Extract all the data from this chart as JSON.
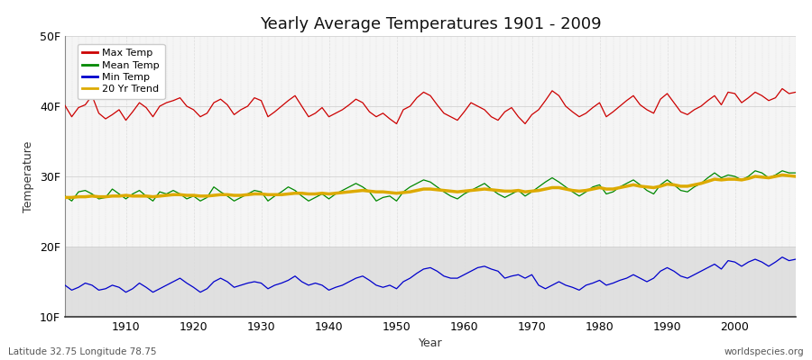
{
  "title": "Yearly Average Temperatures 1901 - 2009",
  "xlabel": "Year",
  "ylabel": "Temperature",
  "footnote_left": "Latitude 32.75 Longitude 78.75",
  "footnote_right": "worldspecies.org",
  "ylim": [
    10,
    50
  ],
  "xlim": [
    1901,
    2009
  ],
  "yticks": [
    10,
    20,
    30,
    40,
    50
  ],
  "ytick_labels": [
    "10F",
    "20F",
    "30F",
    "40F",
    "50F"
  ],
  "xticks": [
    1910,
    1920,
    1930,
    1940,
    1950,
    1960,
    1970,
    1980,
    1990,
    2000
  ],
  "legend_items": [
    {
      "label": "Max Temp",
      "color": "#cc0000"
    },
    {
      "label": "Mean Temp",
      "color": "#008800"
    },
    {
      "label": "Min Temp",
      "color": "#0000cc"
    },
    {
      "label": "20 Yr Trend",
      "color": "#ddaa00"
    }
  ],
  "bg_color": "#ffffff",
  "plot_bg_color": "#f5f5f5",
  "band_color": "#e0e0e0",
  "grid_color": "#cccccc",
  "grid_color_minor": "#dddddd",
  "max_temp": [
    40.1,
    38.5,
    39.8,
    40.2,
    41.5,
    39.0,
    38.2,
    38.8,
    39.5,
    38.0,
    39.2,
    40.5,
    39.8,
    38.5,
    40.0,
    40.5,
    40.8,
    41.2,
    40.0,
    39.5,
    38.5,
    39.0,
    40.5,
    41.0,
    40.2,
    38.8,
    39.5,
    40.0,
    41.2,
    40.8,
    38.5,
    39.2,
    40.0,
    40.8,
    41.5,
    40.0,
    38.5,
    39.0,
    39.8,
    38.5,
    39.0,
    39.5,
    40.2,
    41.0,
    40.5,
    39.2,
    38.5,
    39.0,
    38.2,
    37.5,
    39.5,
    40.0,
    41.2,
    42.0,
    41.5,
    40.2,
    39.0,
    38.5,
    38.0,
    39.2,
    40.5,
    40.0,
    39.5,
    38.5,
    38.0,
    39.2,
    39.8,
    38.5,
    37.5,
    38.8,
    39.5,
    40.8,
    42.2,
    41.5,
    40.0,
    39.2,
    38.5,
    39.0,
    39.8,
    40.5,
    38.5,
    39.2,
    40.0,
    40.8,
    41.5,
    40.2,
    39.5,
    39.0,
    41.0,
    41.8,
    40.5,
    39.2,
    38.8,
    39.5,
    40.0,
    40.8,
    41.5,
    40.2,
    42.0,
    41.8,
    40.5,
    41.2,
    42.0,
    41.5,
    40.8,
    41.2,
    42.5,
    41.8,
    42.0
  ],
  "mean_temp": [
    27.2,
    26.5,
    27.8,
    28.0,
    27.5,
    26.8,
    27.0,
    28.2,
    27.5,
    26.8,
    27.5,
    28.0,
    27.2,
    26.5,
    27.8,
    27.5,
    28.0,
    27.5,
    26.8,
    27.2,
    26.5,
    27.0,
    28.5,
    27.8,
    27.2,
    26.5,
    27.0,
    27.5,
    28.0,
    27.8,
    26.5,
    27.2,
    27.8,
    28.5,
    28.0,
    27.2,
    26.5,
    27.0,
    27.5,
    26.8,
    27.5,
    28.0,
    28.5,
    29.0,
    28.5,
    27.8,
    26.5,
    27.0,
    27.2,
    26.5,
    27.8,
    28.5,
    29.0,
    29.5,
    29.2,
    28.5,
    27.8,
    27.2,
    26.8,
    27.5,
    28.0,
    28.5,
    29.0,
    28.2,
    27.5,
    27.0,
    27.5,
    28.0,
    27.2,
    27.8,
    28.5,
    29.2,
    29.8,
    29.2,
    28.5,
    27.8,
    27.2,
    27.8,
    28.5,
    28.8,
    27.5,
    27.8,
    28.5,
    29.0,
    29.5,
    28.8,
    28.0,
    27.5,
    28.8,
    29.5,
    28.8,
    28.0,
    27.8,
    28.5,
    29.0,
    29.8,
    30.5,
    29.8,
    30.2,
    30.0,
    29.5,
    30.0,
    30.8,
    30.5,
    29.8,
    30.2,
    30.8,
    30.5,
    30.5
  ],
  "trend_temp": [
    27.0,
    27.0,
    27.1,
    27.1,
    27.2,
    27.1,
    27.1,
    27.2,
    27.2,
    27.3,
    27.2,
    27.2,
    27.2,
    27.1,
    27.2,
    27.3,
    27.4,
    27.4,
    27.3,
    27.3,
    27.2,
    27.2,
    27.3,
    27.4,
    27.4,
    27.3,
    27.3,
    27.4,
    27.5,
    27.5,
    27.4,
    27.4,
    27.4,
    27.5,
    27.6,
    27.6,
    27.5,
    27.5,
    27.6,
    27.5,
    27.6,
    27.7,
    27.8,
    27.9,
    28.0,
    27.9,
    27.8,
    27.8,
    27.7,
    27.6,
    27.7,
    27.8,
    28.0,
    28.2,
    28.2,
    28.1,
    28.0,
    27.9,
    27.8,
    27.9,
    28.0,
    28.1,
    28.2,
    28.1,
    28.0,
    27.9,
    27.9,
    28.0,
    27.8,
    27.9,
    28.0,
    28.2,
    28.4,
    28.4,
    28.2,
    28.0,
    27.9,
    28.0,
    28.2,
    28.4,
    28.2,
    28.2,
    28.4,
    28.6,
    28.8,
    28.6,
    28.5,
    28.4,
    28.6,
    28.9,
    28.8,
    28.6,
    28.6,
    28.8,
    29.0,
    29.3,
    29.6,
    29.5,
    29.6,
    29.6,
    29.5,
    29.7,
    30.0,
    29.9,
    29.8,
    30.0,
    30.2,
    30.1,
    30.0
  ],
  "min_temp": [
    14.5,
    13.8,
    14.2,
    14.8,
    14.5,
    13.8,
    14.0,
    14.5,
    14.2,
    13.5,
    14.0,
    14.8,
    14.2,
    13.5,
    14.0,
    14.5,
    15.0,
    15.5,
    14.8,
    14.2,
    13.5,
    14.0,
    15.0,
    15.5,
    15.0,
    14.2,
    14.5,
    14.8,
    15.0,
    14.8,
    14.0,
    14.5,
    14.8,
    15.2,
    15.8,
    15.0,
    14.5,
    14.8,
    14.5,
    13.8,
    14.2,
    14.5,
    15.0,
    15.5,
    15.8,
    15.2,
    14.5,
    14.2,
    14.5,
    14.0,
    15.0,
    15.5,
    16.2,
    16.8,
    17.0,
    16.5,
    15.8,
    15.5,
    15.5,
    16.0,
    16.5,
    17.0,
    17.2,
    16.8,
    16.5,
    15.5,
    15.8,
    16.0,
    15.5,
    16.0,
    14.5,
    14.0,
    14.5,
    15.0,
    14.5,
    14.2,
    13.8,
    14.5,
    14.8,
    15.2,
    14.5,
    14.8,
    15.2,
    15.5,
    16.0,
    15.5,
    15.0,
    15.5,
    16.5,
    17.0,
    16.5,
    15.8,
    15.5,
    16.0,
    16.5,
    17.0,
    17.5,
    16.8,
    18.0,
    17.8,
    17.2,
    17.8,
    18.2,
    17.8,
    17.2,
    17.8,
    18.5,
    18.0,
    18.2
  ]
}
